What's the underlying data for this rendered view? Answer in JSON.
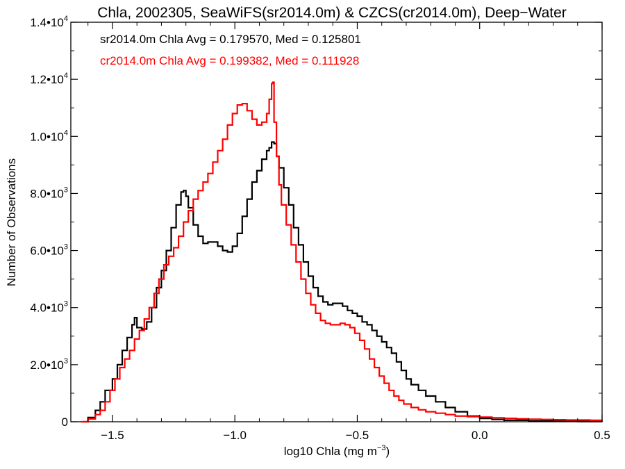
{
  "chart_data": {
    "type": "line",
    "step": true,
    "title": "Chla, 2002305, SeaWiFS(sr2014.0m) & CZCS(cr2014.0m), Deep−Water",
    "xlabel": "log10 Chla (mg m",
    "xlabel_sup": "−3",
    "xlabel_end": ")",
    "ylabel": "Number of Observations",
    "xlim": [
      -1.67,
      0.5
    ],
    "ylim": [
      0,
      14000
    ],
    "x_ticks": [
      -1.5,
      -1.0,
      -0.5,
      0.0,
      0.5
    ],
    "x_tick_labels": [
      "−1.5",
      "−1.0",
      "−0.5",
      "0.0",
      "0.5"
    ],
    "y_ticks": [
      0,
      2000,
      4000,
      6000,
      8000,
      10000,
      12000,
      14000
    ],
    "y_tick_labels": [
      {
        "mantissa": "0",
        "exp": ""
      },
      {
        "mantissa": "2.0•10",
        "exp": "3"
      },
      {
        "mantissa": "4.0•10",
        "exp": "3"
      },
      {
        "mantissa": "6.0•10",
        "exp": "3"
      },
      {
        "mantissa": "8.0•10",
        "exp": "3"
      },
      {
        "mantissa": "1.0•10",
        "exp": "4"
      },
      {
        "mantissa": "1.2•10",
        "exp": "4"
      },
      {
        "mantissa": "1.4•10",
        "exp": "4"
      }
    ],
    "grid": false,
    "annotations": [
      {
        "text": "sr2014.0m Chla Avg = 0.179570, Med = 0.125801",
        "color": "#000000"
      },
      {
        "text": "cr2014.0m Chla Avg = 0.199382, Med = 0.111928",
        "color": "#ff0000"
      }
    ],
    "series": [
      {
        "name": "sr2014.0m",
        "color": "#000000",
        "points": [
          [
            -1.62,
            0
          ],
          [
            -1.6,
            150
          ],
          [
            -1.57,
            400
          ],
          [
            -1.55,
            700
          ],
          [
            -1.53,
            1100
          ],
          [
            -1.5,
            1500
          ],
          [
            -1.48,
            2000
          ],
          [
            -1.46,
            2500
          ],
          [
            -1.44,
            2950
          ],
          [
            -1.42,
            3400
          ],
          [
            -1.41,
            3650
          ],
          [
            -1.4,
            3300
          ],
          [
            -1.38,
            3250
          ],
          [
            -1.36,
            3500
          ],
          [
            -1.34,
            4000
          ],
          [
            -1.32,
            4700
          ],
          [
            -1.3,
            5300
          ],
          [
            -1.28,
            6000
          ],
          [
            -1.26,
            6800
          ],
          [
            -1.24,
            7600
          ],
          [
            -1.22,
            8050
          ],
          [
            -1.21,
            8100
          ],
          [
            -1.2,
            7900
          ],
          [
            -1.19,
            7500
          ],
          [
            -1.17,
            6900
          ],
          [
            -1.15,
            6500
          ],
          [
            -1.13,
            6250
          ],
          [
            -1.11,
            6300
          ],
          [
            -1.09,
            6300
          ],
          [
            -1.07,
            6150
          ],
          [
            -1.05,
            6000
          ],
          [
            -1.03,
            5950
          ],
          [
            -1.01,
            6150
          ],
          [
            -0.99,
            6600
          ],
          [
            -0.97,
            7200
          ],
          [
            -0.95,
            7800
          ],
          [
            -0.93,
            8400
          ],
          [
            -0.91,
            8800
          ],
          [
            -0.89,
            9200
          ],
          [
            -0.87,
            9500
          ],
          [
            -0.86,
            9600
          ],
          [
            -0.85,
            9800
          ],
          [
            -0.84,
            9750
          ],
          [
            -0.83,
            9300
          ],
          [
            -0.82,
            8900
          ],
          [
            -0.8,
            8200
          ],
          [
            -0.78,
            7600
          ],
          [
            -0.76,
            6800
          ],
          [
            -0.74,
            6200
          ],
          [
            -0.72,
            5600
          ],
          [
            -0.7,
            5100
          ],
          [
            -0.68,
            4700
          ],
          [
            -0.66,
            4400
          ],
          [
            -0.64,
            4200
          ],
          [
            -0.62,
            4100
          ],
          [
            -0.6,
            4150
          ],
          [
            -0.58,
            4150
          ],
          [
            -0.56,
            4050
          ],
          [
            -0.54,
            3900
          ],
          [
            -0.52,
            3800
          ],
          [
            -0.5,
            3700
          ],
          [
            -0.48,
            3500
          ],
          [
            -0.46,
            3400
          ],
          [
            -0.44,
            3200
          ],
          [
            -0.42,
            3000
          ],
          [
            -0.4,
            2800
          ],
          [
            -0.38,
            2600
          ],
          [
            -0.36,
            2400
          ],
          [
            -0.34,
            2100
          ],
          [
            -0.32,
            1800
          ],
          [
            -0.3,
            1500
          ],
          [
            -0.28,
            1300
          ],
          [
            -0.25,
            1100
          ],
          [
            -0.22,
            900
          ],
          [
            -0.18,
            700
          ],
          [
            -0.14,
            500
          ],
          [
            -0.1,
            350
          ],
          [
            -0.05,
            200
          ],
          [
            0.0,
            120
          ],
          [
            0.05,
            80
          ],
          [
            0.1,
            50
          ],
          [
            0.2,
            30
          ],
          [
            0.3,
            20
          ],
          [
            0.4,
            10
          ],
          [
            0.5,
            5
          ]
        ]
      },
      {
        "name": "cr2014.0m",
        "color": "#ff0000",
        "points": [
          [
            -1.63,
            0
          ],
          [
            -1.6,
            100
          ],
          [
            -1.57,
            250
          ],
          [
            -1.55,
            400
          ],
          [
            -1.53,
            700
          ],
          [
            -1.51,
            1100
          ],
          [
            -1.49,
            1500
          ],
          [
            -1.47,
            1900
          ],
          [
            -1.45,
            2200
          ],
          [
            -1.43,
            2500
          ],
          [
            -1.41,
            2900
          ],
          [
            -1.39,
            3200
          ],
          [
            -1.37,
            3600
          ],
          [
            -1.35,
            4000
          ],
          [
            -1.33,
            4500
          ],
          [
            -1.31,
            5000
          ],
          [
            -1.29,
            5500
          ],
          [
            -1.27,
            5800
          ],
          [
            -1.25,
            6100
          ],
          [
            -1.23,
            6500
          ],
          [
            -1.21,
            7000
          ],
          [
            -1.19,
            7400
          ],
          [
            -1.17,
            7800
          ],
          [
            -1.15,
            8100
          ],
          [
            -1.13,
            8400
          ],
          [
            -1.11,
            8700
          ],
          [
            -1.09,
            9100
          ],
          [
            -1.07,
            9500
          ],
          [
            -1.05,
            9900
          ],
          [
            -1.03,
            10400
          ],
          [
            -1.01,
            10800
          ],
          [
            -0.99,
            11100
          ],
          [
            -0.97,
            11150
          ],
          [
            -0.95,
            10900
          ],
          [
            -0.93,
            10600
          ],
          [
            -0.91,
            10400
          ],
          [
            -0.89,
            10500
          ],
          [
            -0.87,
            10800
          ],
          [
            -0.86,
            11300
          ],
          [
            -0.85,
            11850
          ],
          [
            -0.845,
            11900
          ],
          [
            -0.84,
            10500
          ],
          [
            -0.83,
            9300
          ],
          [
            -0.82,
            8300
          ],
          [
            -0.81,
            7600
          ],
          [
            -0.79,
            6900
          ],
          [
            -0.77,
            6200
          ],
          [
            -0.75,
            5600
          ],
          [
            -0.73,
            5000
          ],
          [
            -0.71,
            4500
          ],
          [
            -0.69,
            4100
          ],
          [
            -0.67,
            3800
          ],
          [
            -0.65,
            3550
          ],
          [
            -0.63,
            3450
          ],
          [
            -0.61,
            3400
          ],
          [
            -0.59,
            3400
          ],
          [
            -0.57,
            3450
          ],
          [
            -0.55,
            3400
          ],
          [
            -0.53,
            3300
          ],
          [
            -0.51,
            3100
          ],
          [
            -0.49,
            2850
          ],
          [
            -0.47,
            2550
          ],
          [
            -0.45,
            2200
          ],
          [
            -0.43,
            1900
          ],
          [
            -0.41,
            1600
          ],
          [
            -0.39,
            1350
          ],
          [
            -0.37,
            1100
          ],
          [
            -0.35,
            900
          ],
          [
            -0.33,
            750
          ],
          [
            -0.31,
            620
          ],
          [
            -0.28,
            500
          ],
          [
            -0.25,
            420
          ],
          [
            -0.22,
            350
          ],
          [
            -0.18,
            300
          ],
          [
            -0.14,
            250
          ],
          [
            -0.1,
            200
          ],
          [
            -0.05,
            180
          ],
          [
            0.0,
            160
          ],
          [
            0.05,
            140
          ],
          [
            0.1,
            120
          ],
          [
            0.15,
            100
          ],
          [
            0.2,
            90
          ],
          [
            0.25,
            80
          ],
          [
            0.3,
            70
          ],
          [
            0.35,
            60
          ],
          [
            0.4,
            60
          ],
          [
            0.45,
            50
          ],
          [
            0.5,
            50
          ]
        ]
      }
    ]
  }
}
